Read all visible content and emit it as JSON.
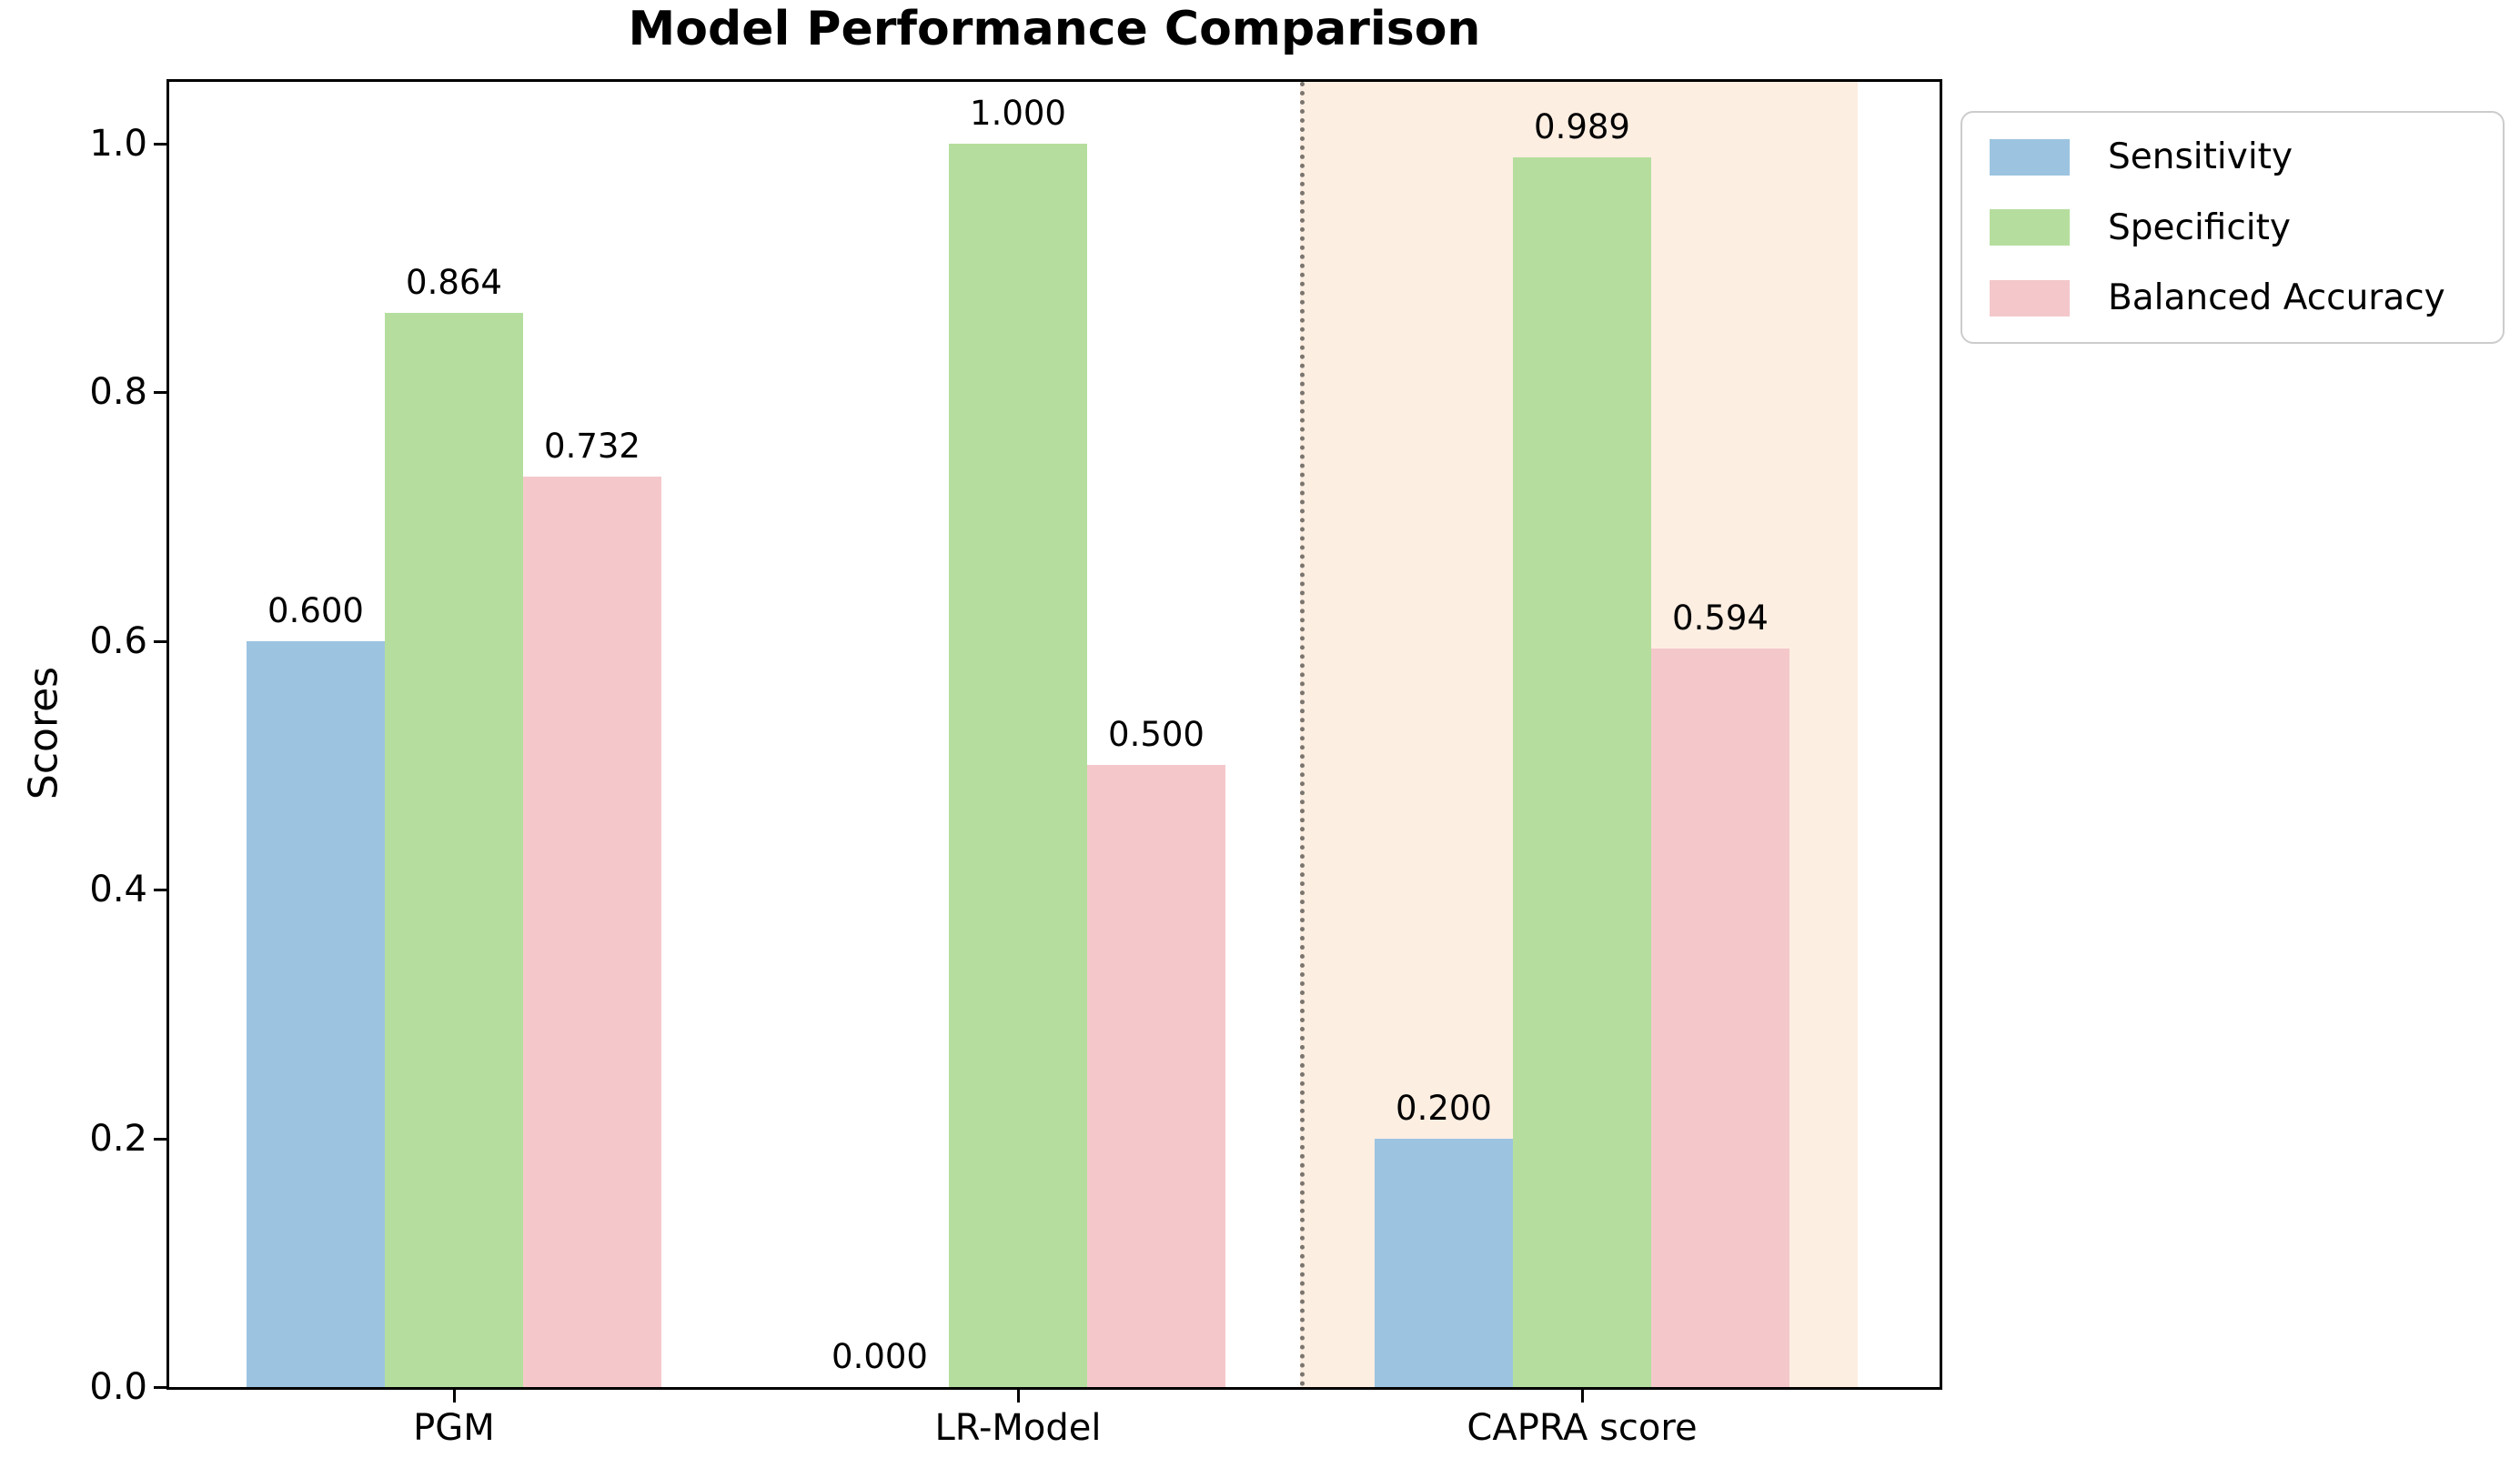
{
  "title": "Model Performance Comparison",
  "ylabel": "Scores",
  "chart_data": {
    "type": "bar",
    "categories": [
      "PGM",
      "LR-Model",
      "CAPRA score"
    ],
    "series": [
      {
        "name": "Sensitivity",
        "color": "#9cc4e0",
        "values": [
          0.6,
          0.0,
          0.2
        ],
        "labels": [
          "0.600",
          "0.000",
          "0.200"
        ]
      },
      {
        "name": "Specificity",
        "color": "#b5de9e",
        "values": [
          0.864,
          1.0,
          0.989
        ],
        "labels": [
          "0.864",
          "1.000",
          "0.989"
        ]
      },
      {
        "name": "Balanced Accuracy",
        "color": "#f4c8cb",
        "values": [
          0.732,
          0.5,
          0.594
        ],
        "labels": [
          "0.732",
          "0.500",
          "0.594"
        ]
      }
    ],
    "xlabel": "",
    "ylim": [
      0.0,
      1.05
    ],
    "yticks": {
      "values": [
        0.0,
        0.2,
        0.4,
        0.6,
        0.8,
        1.0
      ],
      "labels": [
        "0.0",
        "0.2",
        "0.4",
        "0.6",
        "0.8",
        "1.0"
      ]
    },
    "grid": false,
    "legend": {
      "position": "upper-right-outside",
      "entries": [
        "Sensitivity",
        "Specificity",
        "Balanced Accuracy"
      ]
    },
    "highlight": {
      "category": "CAPRA score",
      "span_x": [
        1.5,
        2.5
      ],
      "color": "#fdeee2",
      "divider": {
        "x": 1.5,
        "style": "dotted",
        "color": "#7a756e"
      }
    }
  }
}
